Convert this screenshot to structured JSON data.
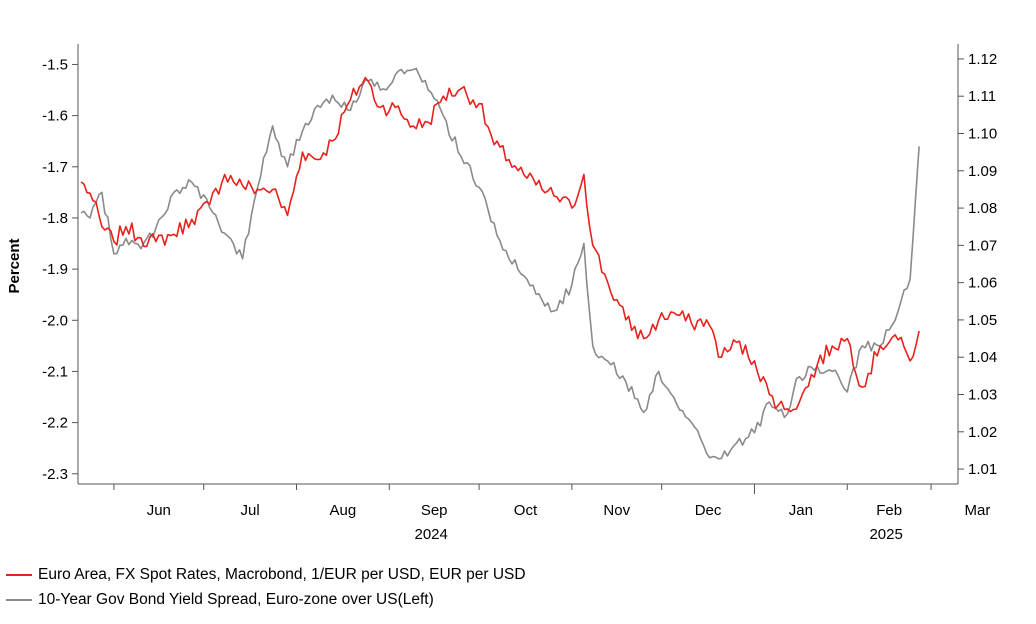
{
  "chart_data": {
    "type": "line",
    "left_axis": {
      "label": "Percent",
      "ticks": [
        "-1.5",
        "-1.6",
        "-1.7",
        "-1.8",
        "-1.9",
        "-2.0",
        "-2.1",
        "-2.2",
        "-2.3"
      ],
      "ylim": [
        -2.32,
        -1.46
      ]
    },
    "right_axis": {
      "label": "",
      "ticks": [
        "1.12",
        "1.11",
        "1.10",
        "1.09",
        "1.08",
        "1.07",
        "1.06",
        "1.05",
        "1.04",
        "1.03",
        "1.02",
        "1.01"
      ],
      "ylim": [
        1.006,
        1.124
      ]
    },
    "x_axis": {
      "months": [
        "Jun",
        "Jul",
        "Aug",
        "Sep",
        "Oct",
        "Nov",
        "Dec",
        "Jan",
        "Feb",
        "Mar"
      ],
      "years": [
        "2024",
        "2025"
      ],
      "xlim": [
        "2024-05-20",
        "2025-03-10"
      ]
    },
    "grid": false,
    "legend_placement": "bottom",
    "series": [
      {
        "name": "Euro Area, FX Spot Rates, Macrobond, 1/EUR per USD, EUR per USD",
        "axis": "right",
        "color": "#e8211c",
        "x": [
          "2024-05-21",
          "2024-05-24",
          "2024-05-28",
          "2024-06-01",
          "2024-06-05",
          "2024-06-10",
          "2024-06-15",
          "2024-06-21",
          "2024-06-27",
          "2024-07-03",
          "2024-07-08",
          "2024-07-14",
          "2024-07-19",
          "2024-07-24",
          "2024-07-29",
          "2024-08-03",
          "2024-08-08",
          "2024-08-13",
          "2024-08-19",
          "2024-08-24",
          "2024-08-29",
          "2024-09-03",
          "2024-09-09",
          "2024-09-14",
          "2024-09-19",
          "2024-09-25",
          "2024-10-01",
          "2024-10-06",
          "2024-10-11",
          "2024-10-17",
          "2024-10-22",
          "2024-10-27",
          "2024-11-01",
          "2024-11-05",
          "2024-11-08",
          "2024-11-13",
          "2024-11-19",
          "2024-11-25",
          "2024-11-30",
          "2024-12-05",
          "2024-12-11",
          "2024-12-16",
          "2024-12-21",
          "2024-12-26",
          "2025-01-01",
          "2025-01-06",
          "2025-01-11",
          "2025-01-16",
          "2025-01-22",
          "2025-01-27",
          "2025-02-01",
          "2025-02-06",
          "2025-02-12",
          "2025-02-17",
          "2025-02-22",
          "2025-02-25"
        ],
        "values": [
          1.087,
          1.084,
          1.075,
          1.071,
          1.075,
          1.072,
          1.071,
          1.073,
          1.077,
          1.081,
          1.089,
          1.086,
          1.085,
          1.085,
          1.078,
          1.095,
          1.093,
          1.098,
          1.109,
          1.115,
          1.107,
          1.107,
          1.102,
          1.103,
          1.11,
          1.112,
          1.108,
          1.097,
          1.093,
          1.088,
          1.085,
          1.083,
          1.08,
          1.089,
          1.07,
          1.06,
          1.05,
          1.045,
          1.05,
          1.052,
          1.049,
          1.05,
          1.04,
          1.044,
          1.039,
          1.03,
          1.026,
          1.028,
          1.038,
          1.043,
          1.045,
          1.032,
          1.043,
          1.046,
          1.039,
          1.047
        ]
      },
      {
        "name": "10-Year Gov Bond Yield Spread, Euro-zone over US(Left)",
        "axis": "left",
        "color": "#8a8a8a",
        "x": [
          "2024-05-21",
          "2024-05-24",
          "2024-05-28",
          "2024-06-01",
          "2024-06-05",
          "2024-06-10",
          "2024-06-15",
          "2024-06-21",
          "2024-06-27",
          "2024-07-03",
          "2024-07-08",
          "2024-07-14",
          "2024-07-19",
          "2024-07-24",
          "2024-07-29",
          "2024-08-03",
          "2024-08-08",
          "2024-08-13",
          "2024-08-19",
          "2024-08-24",
          "2024-08-29",
          "2024-09-03",
          "2024-09-09",
          "2024-09-14",
          "2024-09-19",
          "2024-09-25",
          "2024-10-01",
          "2024-10-06",
          "2024-10-11",
          "2024-10-17",
          "2024-10-22",
          "2024-10-27",
          "2024-11-01",
          "2024-11-05",
          "2024-11-08",
          "2024-11-13",
          "2024-11-19",
          "2024-11-25",
          "2024-11-30",
          "2024-12-05",
          "2024-12-11",
          "2024-12-16",
          "2024-12-21",
          "2024-12-26",
          "2025-01-01",
          "2025-01-06",
          "2025-01-11",
          "2025-01-16",
          "2025-01-22",
          "2025-01-27",
          "2025-02-01",
          "2025-02-06",
          "2025-02-12",
          "2025-02-17",
          "2025-02-22",
          "2025-02-25"
        ],
        "values": [
          -1.79,
          -1.8,
          -1.75,
          -1.87,
          -1.84,
          -1.86,
          -1.82,
          -1.75,
          -1.73,
          -1.78,
          -1.83,
          -1.88,
          -1.74,
          -1.62,
          -1.7,
          -1.63,
          -1.58,
          -1.56,
          -1.59,
          -1.53,
          -1.55,
          -1.52,
          -1.51,
          -1.55,
          -1.6,
          -1.68,
          -1.74,
          -1.81,
          -1.88,
          -1.92,
          -1.96,
          -1.98,
          -1.93,
          -1.85,
          -2.05,
          -2.08,
          -2.12,
          -2.18,
          -2.1,
          -2.15,
          -2.2,
          -2.26,
          -2.27,
          -2.24,
          -2.22,
          -2.16,
          -2.19,
          -2.11,
          -2.09,
          -2.1,
          -2.14,
          -2.05,
          -2.05,
          -2.0,
          -1.92,
          -1.66
        ]
      }
    ]
  }
}
